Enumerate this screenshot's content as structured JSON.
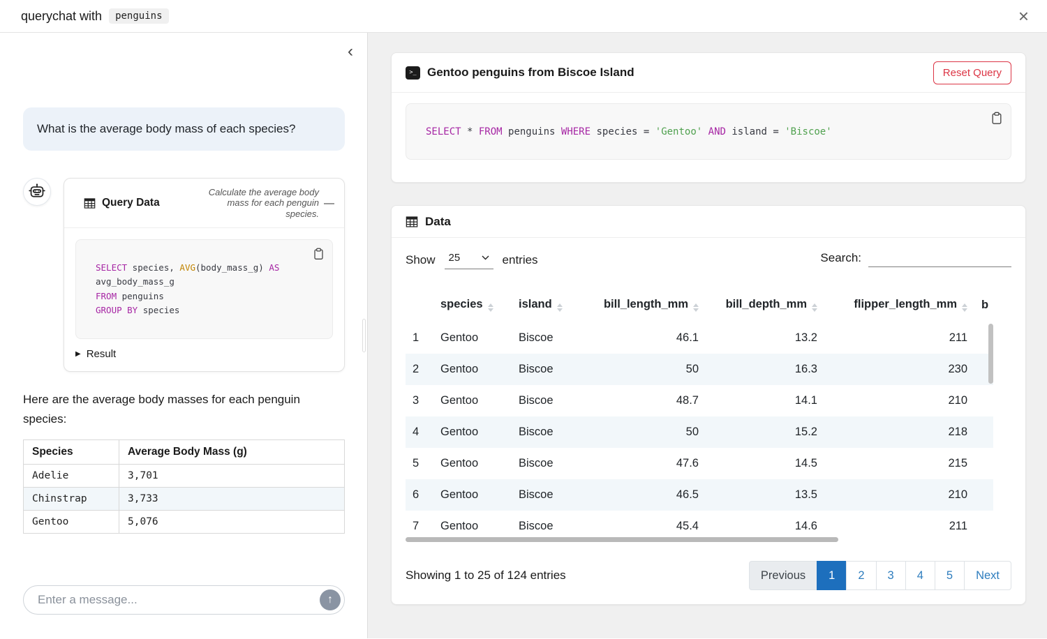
{
  "window": {
    "title_prefix": "querychat with",
    "title_dataset": "penguins",
    "close_icon": "×"
  },
  "sidebar": {
    "collapse_icon": "‹",
    "user_message": "What is the average body mass of each species?",
    "tool_card": {
      "title": "Query Data",
      "caption": "Calculate the average body mass for each penguin species.",
      "collapse_label": "—",
      "sql_tokens": [
        {
          "t": "SELECT",
          "c": "kw"
        },
        {
          "t": " species, "
        },
        {
          "t": "AVG",
          "c": "fn"
        },
        {
          "t": "(body_mass_g) "
        },
        {
          "t": "AS",
          "c": "kw"
        },
        {
          "t": "\navg_body_mass_g\n"
        },
        {
          "t": "FROM",
          "c": "kw"
        },
        {
          "t": " penguins\n"
        },
        {
          "t": "GROUP BY",
          "c": "kw"
        },
        {
          "t": " species"
        }
      ],
      "result_arrow": "▶",
      "result_toggle": "Result"
    },
    "answer_text": "Here are the average body masses for each penguin species:",
    "answer_table": {
      "columns": [
        "Species",
        "Average Body Mass (g)"
      ],
      "rows": [
        [
          "Adelie",
          "3,701"
        ],
        [
          "Chinstrap",
          "3,733"
        ],
        [
          "Gentoo",
          "5,076"
        ]
      ]
    },
    "composer": {
      "placeholder": "Enter a message...",
      "send_icon": "↑"
    }
  },
  "main": {
    "query_card": {
      "terminal_icon_glyph": ">_",
      "title": "Gentoo penguins from Biscoe Island",
      "reset_button": "Reset Query",
      "sql_tokens": [
        {
          "t": "SELECT",
          "c": "kw"
        },
        {
          "t": " * "
        },
        {
          "t": "FROM",
          "c": "kw"
        },
        {
          "t": " penguins "
        },
        {
          "t": "WHERE",
          "c": "kw"
        },
        {
          "t": " species = "
        },
        {
          "t": "'Gentoo'",
          "c": "str"
        },
        {
          "t": " "
        },
        {
          "t": "AND",
          "c": "kw"
        },
        {
          "t": " island = "
        },
        {
          "t": "'Biscoe'",
          "c": "str"
        }
      ]
    },
    "data_card": {
      "title": "Data",
      "length_control": {
        "prefix": "Show",
        "value": "25",
        "suffix": "entries"
      },
      "search_label": "Search:",
      "table": {
        "columns": [
          {
            "label": "",
            "sortable": false,
            "align": "left"
          },
          {
            "label": "species",
            "sortable": true,
            "align": "left"
          },
          {
            "label": "island",
            "sortable": true,
            "align": "left"
          },
          {
            "label": "bill_length_mm",
            "sortable": true,
            "align": "right"
          },
          {
            "label": "bill_depth_mm",
            "sortable": true,
            "align": "right"
          },
          {
            "label": "flipper_length_mm",
            "sortable": true,
            "align": "right"
          },
          {
            "label": "b",
            "sortable": false,
            "align": "left"
          }
        ],
        "rows": [
          [
            "1",
            "Gentoo",
            "Biscoe",
            "46.1",
            "13.2",
            "211",
            ""
          ],
          [
            "2",
            "Gentoo",
            "Biscoe",
            "50",
            "16.3",
            "230",
            ""
          ],
          [
            "3",
            "Gentoo",
            "Biscoe",
            "48.7",
            "14.1",
            "210",
            ""
          ],
          [
            "4",
            "Gentoo",
            "Biscoe",
            "50",
            "15.2",
            "218",
            ""
          ],
          [
            "5",
            "Gentoo",
            "Biscoe",
            "47.6",
            "14.5",
            "215",
            ""
          ],
          [
            "6",
            "Gentoo",
            "Biscoe",
            "46.5",
            "13.5",
            "210",
            ""
          ],
          [
            "7",
            "Gentoo",
            "Biscoe",
            "45.4",
            "14.6",
            "211",
            ""
          ]
        ]
      },
      "footer": {
        "status": "Showing 1 to 25 of 124 entries",
        "pagination": [
          {
            "label": "Previous",
            "state": "disabled"
          },
          {
            "label": "1",
            "state": "active"
          },
          {
            "label": "2",
            "state": "normal"
          },
          {
            "label": "3",
            "state": "normal"
          },
          {
            "label": "4",
            "state": "normal"
          },
          {
            "label": "5",
            "state": "normal"
          },
          {
            "label": "Next",
            "state": "normal"
          }
        ]
      }
    }
  },
  "colors": {
    "accent_blue": "#1d6fbd",
    "link_blue": "#2e7dbe",
    "danger_red": "#dc3545",
    "user_bubble_bg": "#ecf2f9",
    "stripe_bg": "#f2f7fa",
    "sql_keyword": "#a626a4",
    "sql_builtin": "#c18401",
    "sql_string": "#50a14f"
  }
}
